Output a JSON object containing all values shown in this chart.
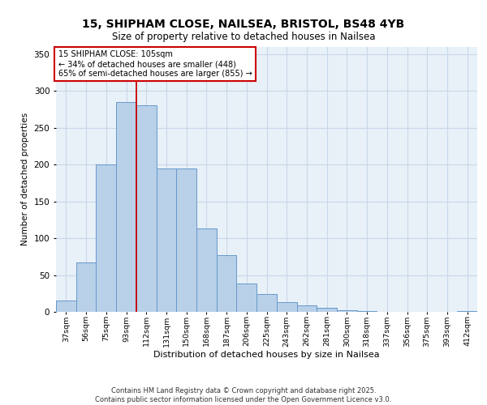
{
  "title1": "15, SHIPHAM CLOSE, NAILSEA, BRISTOL, BS48 4YB",
  "title2": "Size of property relative to detached houses in Nailsea",
  "xlabel": "Distribution of detached houses by size in Nailsea",
  "ylabel": "Number of detached properties",
  "categories": [
    "37sqm",
    "56sqm",
    "75sqm",
    "93sqm",
    "112sqm",
    "131sqm",
    "150sqm",
    "168sqm",
    "187sqm",
    "206sqm",
    "225sqm",
    "243sqm",
    "262sqm",
    "281sqm",
    "300sqm",
    "318sqm",
    "337sqm",
    "356sqm",
    "375sqm",
    "393sqm",
    "412sqm"
  ],
  "bar_values": [
    15,
    67,
    200,
    285,
    280,
    195,
    195,
    113,
    77,
    38,
    24,
    13,
    9,
    6,
    2,
    1,
    0,
    0,
    0,
    0,
    1
  ],
  "bar_color": "#b8d0e8",
  "bar_edge_color": "#6699cc",
  "vline_color": "#cc0000",
  "vline_x_index": 3.5,
  "annotation_text": "15 SHIPHAM CLOSE: 105sqm\n← 34% of detached houses are smaller (448)\n65% of semi-detached houses are larger (855) →",
  "annotation_box_color": "#ffffff",
  "annotation_box_edge": "#cc0000",
  "grid_color": "#c8d8e8",
  "background_color": "#e8f0f8",
  "footer": "Contains HM Land Registry data © Crown copyright and database right 2025.\nContains public sector information licensed under the Open Government Licence v3.0.",
  "ylim": [
    0,
    360
  ],
  "yticks": [
    0,
    50,
    100,
    150,
    200,
    250,
    300,
    350
  ]
}
